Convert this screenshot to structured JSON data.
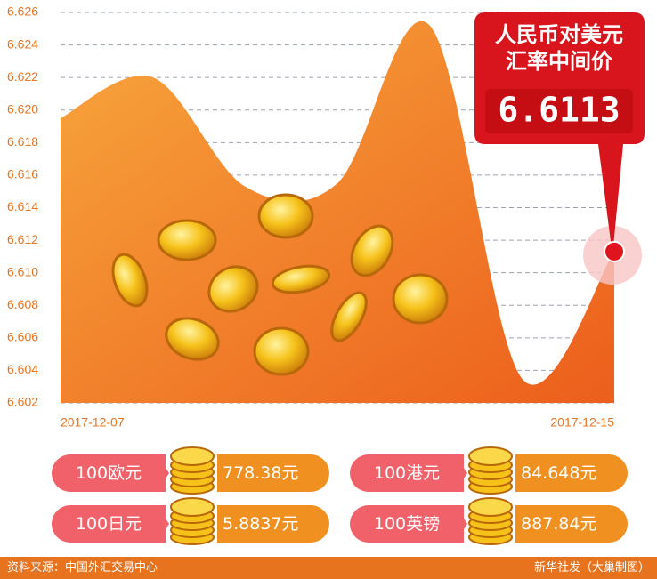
{
  "chart_data": {
    "type": "area",
    "annotation": [
      "人民币对美元",
      "汇率中间价"
    ],
    "categories": [
      "2017-12-07",
      null,
      null,
      null,
      null,
      null,
      "2017-12-15"
    ],
    "values": [
      6.6195,
      6.622,
      6.6153,
      6.6155,
      6.6252,
      6.6035,
      6.6113
    ],
    "color": "#f07a1a",
    "highlight_color": "#e0141c",
    "ylim": [
      6.602,
      6.626
    ],
    "yticks": [
      6.602,
      6.604,
      6.606,
      6.608,
      {
        "value": 6.61,
        "label": "6.610"
      },
      6.612,
      6.614,
      6.616,
      6.618,
      {
        "value": 6.62,
        "label": "6.620"
      },
      6.622,
      6.624,
      6.626
    ],
    "grid": true
  },
  "rates": [
    {
      "currency": "100欧元",
      "rate": "778.38元"
    },
    {
      "currency": "100港元",
      "rate": "84.648元"
    },
    {
      "currency": "100日元",
      "rate": "5.8837元"
    },
    {
      "currency": "100英镑",
      "rate": "887.84元"
    }
  ],
  "footer": {
    "source": "资料来源：中国外汇交易中心",
    "credit": "新华社发（大巢制图）"
  }
}
